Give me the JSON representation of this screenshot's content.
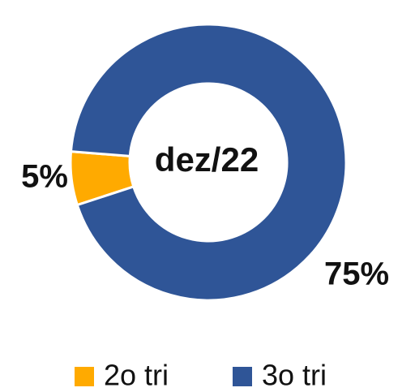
{
  "chart_data": {
    "type": "donut",
    "title": "dez/22",
    "series": [
      {
        "name": "2o tri",
        "color": "#FFAA00",
        "values": [
          5
        ],
        "value_labels": [
          "5%"
        ]
      },
      {
        "name": "3o tri",
        "color": "#2F5597",
        "values": [
          75
        ],
        "value_labels": [
          "75%"
        ]
      }
    ],
    "legend": "bottom"
  }
}
